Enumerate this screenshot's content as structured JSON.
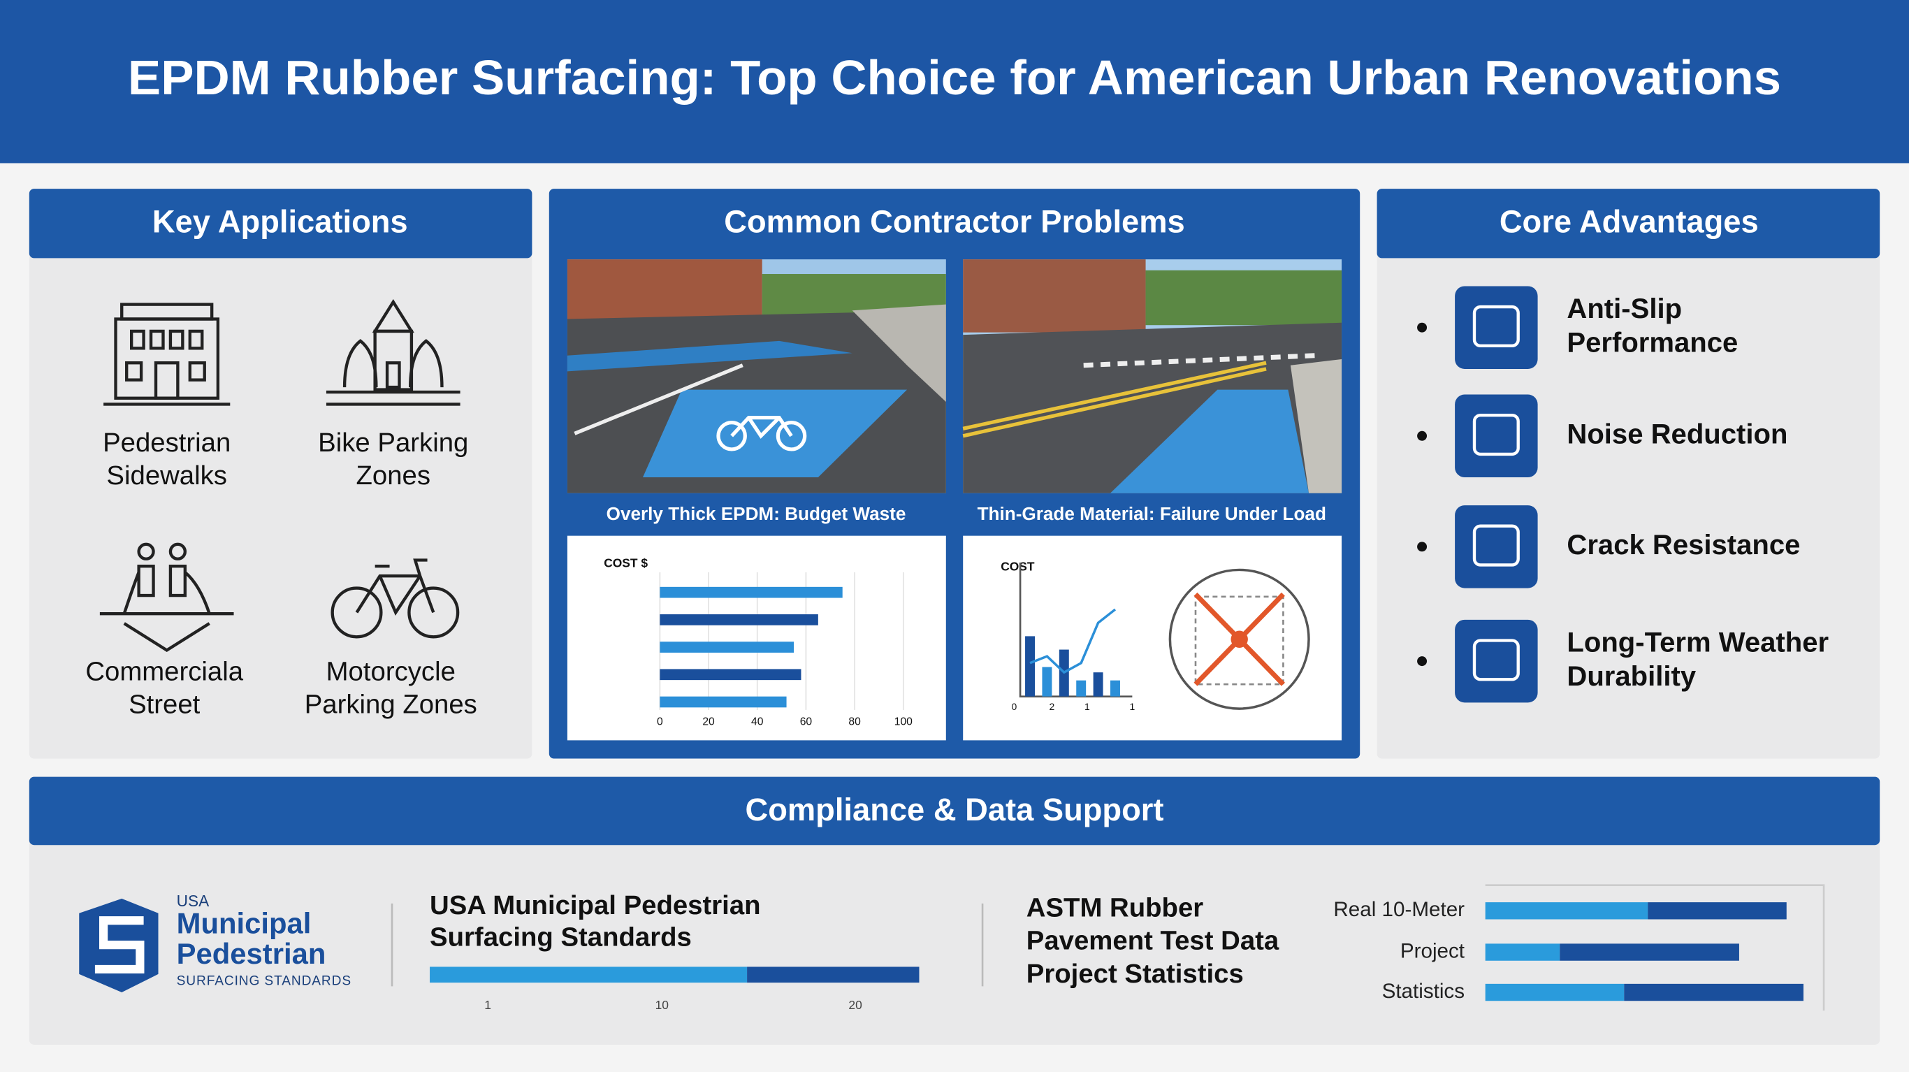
{
  "header": {
    "title": "EPDM Rubber Surfacing: Top Choice for American Urban Renovations"
  },
  "key_applications": {
    "title": "Key Applications",
    "items": [
      {
        "lines": [
          "Pedestrian",
          "Sidewalks"
        ]
      },
      {
        "lines": [
          "Bike Parking",
          "Zones"
        ]
      },
      {
        "lines": [
          "Commerciala",
          "Street"
        ]
      },
      {
        "lines": [
          "Motorcycle",
          "Parking Zones"
        ]
      }
    ]
  },
  "contractor_problems": {
    "title": "Common Contractor Problems",
    "panels": [
      {
        "caption": "Overly Thick EPDM: Budget Waste",
        "chart": {
          "label": "COST $",
          "values": [
            75,
            65,
            55,
            58,
            52
          ],
          "colors": [
            "#2b8fd8",
            "#1a4f9c"
          ],
          "xlim": [
            0,
            100
          ],
          "xticks": [
            0,
            20,
            40,
            60,
            80,
            100
          ],
          "grid": true
        }
      },
      {
        "caption": "Thin-Grade Material: Failure Under Load",
        "chart": {
          "label": "COST",
          "values": [
            0.45,
            0.22,
            0.35,
            0.12,
            0.18,
            0.12
          ],
          "line": [
            0.25,
            0.3,
            0.18,
            0.25,
            0.55,
            0.65
          ],
          "colors": [
            "#1a4f9c",
            "#2b8fd8"
          ],
          "ylim": [
            0,
            1
          ],
          "xticks": [
            "0",
            "2",
            "1",
            "1"
          ]
        }
      }
    ]
  },
  "core_advantages": {
    "title": "Core Advantages",
    "items": [
      {
        "lines": [
          "Anti-Slip",
          "Performance"
        ]
      },
      {
        "lines": [
          "Noise Reduction"
        ]
      },
      {
        "lines": [
          "Crack Resistance"
        ]
      },
      {
        "lines": [
          "Long-Term Weather",
          "Durability"
        ]
      }
    ]
  },
  "compliance": {
    "title": "Compliance & Data Support",
    "logo": {
      "lines": [
        "USA",
        "Municipal",
        "Pedestrian",
        "SURFACING STANDARDS"
      ]
    },
    "standards": {
      "lines": [
        "USA Municipal Pedestrian",
        "Surfacing Standards"
      ],
      "segments": [
        16.4,
        8.9
      ],
      "colors": [
        "#2a9bdc",
        "#1a4f9c"
      ],
      "xlim": [
        -2,
        23.3
      ],
      "xticks": [
        1,
        10,
        20
      ]
    },
    "astm": {
      "lines": [
        "ASTM Rubber",
        "Pavement Test Data",
        "Project Statistics"
      ]
    },
    "stats": {
      "categories": [
        "Real 10-Meter",
        "Project",
        "Statistics"
      ],
      "series": [
        {
          "color": "#2a9bdc",
          "values": [
            48,
            22,
            41
          ]
        },
        {
          "color": "#1a4f9c",
          "values": [
            41,
            53,
            53
          ]
        }
      ],
      "xlim": [
        0,
        100
      ]
    }
  }
}
